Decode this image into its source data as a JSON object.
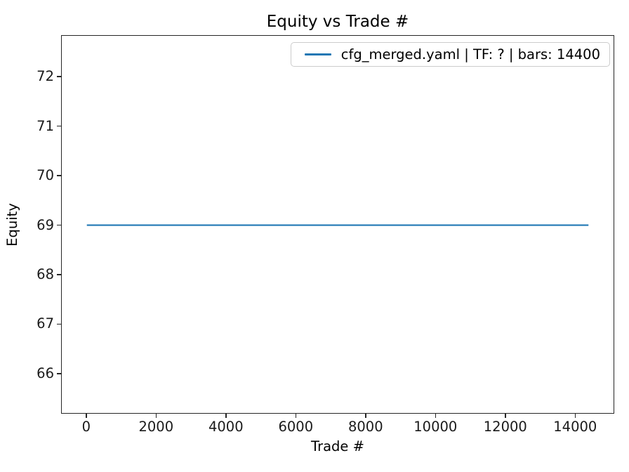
{
  "chart_data": {
    "type": "line",
    "title": "Equity vs Trade #",
    "xlabel": "Trade #",
    "ylabel": "Equity",
    "series": [
      {
        "name": "cfg_merged.yaml | TF: ? | bars: 14400",
        "color": "#1f77b4",
        "x": [
          0,
          14400
        ],
        "y": [
          69.0,
          69.0
        ]
      }
    ],
    "x_ticks": [
      0,
      2000,
      4000,
      6000,
      8000,
      10000,
      12000,
      14000
    ],
    "y_ticks": [
      66,
      67,
      68,
      69,
      70,
      71,
      72
    ],
    "xlim": [
      -720,
      15120
    ],
    "ylim": [
      65.19,
      72.84
    ],
    "grid": false,
    "legend_position": "upper right",
    "background_color": "#ffffff",
    "spine_color": "#262626"
  }
}
